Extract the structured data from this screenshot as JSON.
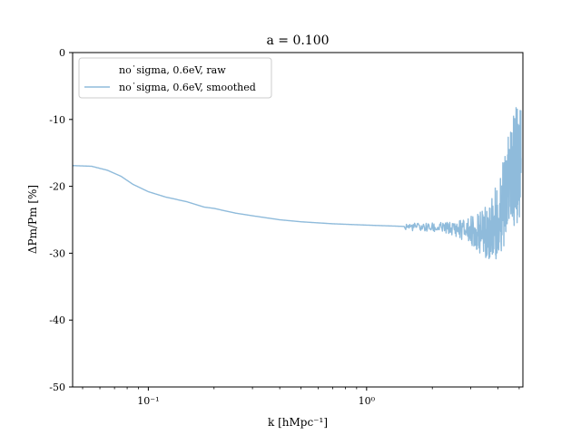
{
  "chart_data": {
    "type": "line",
    "title": "a = 0.100",
    "xlabel": "k [hMpc⁻¹]",
    "ylabel": "ΔPm/Pm [%]",
    "xscale": "log",
    "xlim": [
      0.045,
      5.2
    ],
    "ylim": [
      -50,
      0
    ],
    "xticks": [
      {
        "value": 0.1,
        "label": "10⁻¹"
      },
      {
        "value": 1,
        "label": "10⁰"
      }
    ],
    "yticks": [
      {
        "value": 0,
        "label": "0"
      },
      {
        "value": -10,
        "label": "-10"
      },
      {
        "value": -20,
        "label": "-20"
      },
      {
        "value": -30,
        "label": "-30"
      },
      {
        "value": -40,
        "label": "-40"
      },
      {
        "value": -50,
        "label": "-50"
      }
    ],
    "legend": {
      "placement": "top-left"
    },
    "grid": false,
    "series": [
      {
        "name": "no˙sigma, 0.6eV, raw",
        "color": "#ffffff",
        "x": [],
        "y": []
      },
      {
        "name": "no˙sigma, 0.6eV, smoothed",
        "color": "#8fbbdb",
        "x": [
          0.045,
          0.055,
          0.065,
          0.075,
          0.085,
          0.1,
          0.12,
          0.15,
          0.18,
          0.2,
          0.25,
          0.3,
          0.4,
          0.5,
          0.7,
          1.0,
          1.5,
          2.0,
          2.5,
          3.0,
          3.3,
          3.7,
          4.0,
          4.3,
          4.6,
          4.9,
          5.1
        ],
        "y": [
          -16.9,
          -17.0,
          -17.6,
          -18.5,
          -19.7,
          -20.8,
          -21.6,
          -22.3,
          -23.1,
          -23.3,
          -24.0,
          -24.4,
          -25.0,
          -25.3,
          -25.6,
          -25.8,
          -26.0,
          -26.2,
          -26.3,
          -26.6,
          -27.0,
          -26.5,
          -25.0,
          -22.0,
          -18.5,
          -16.5,
          -15.8
        ],
        "noise": {
          "x_start": 1.5,
          "amplitude_pct": [
            0.6,
            0.7,
            1.0,
            2.5,
            6.0,
            10.0
          ]
        }
      }
    ]
  }
}
